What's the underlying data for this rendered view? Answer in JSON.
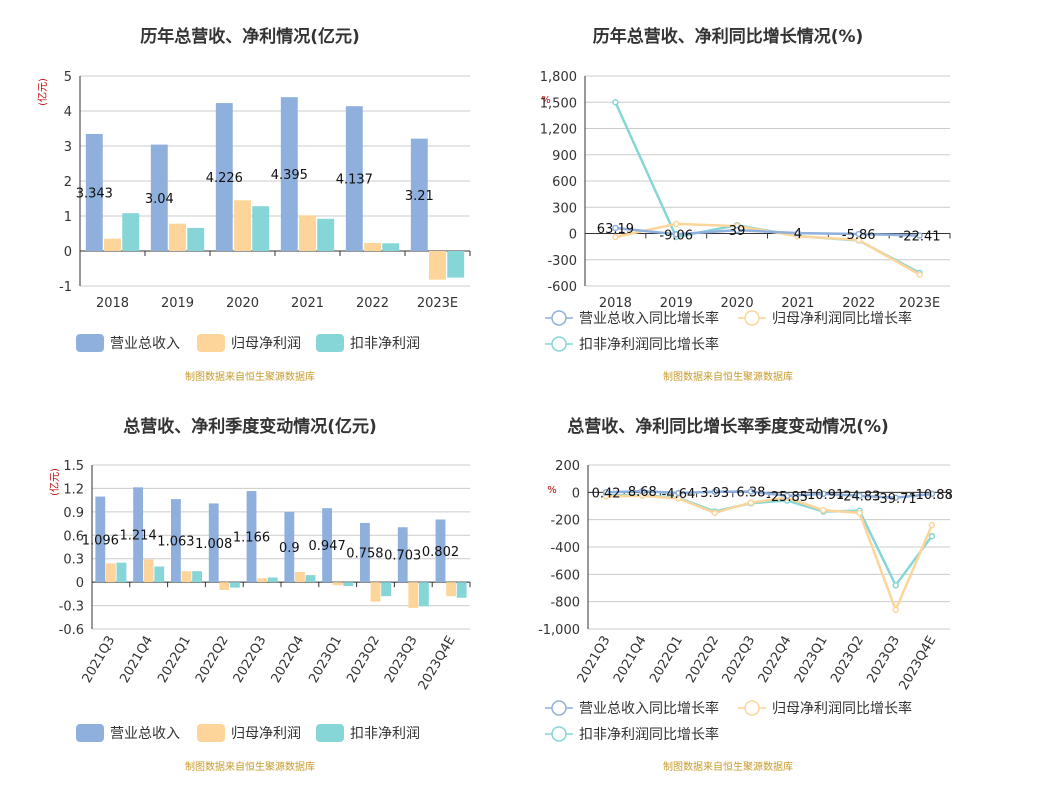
{
  "colors": {
    "revenue": "#8fb0dd",
    "net_profit": "#fdd59a",
    "deducted_profit": "#86d6d8",
    "line_revenue": "#8fb0dd",
    "line_net": "#fdd59a",
    "line_deducted": "#86d6d8",
    "source": "#c89a2c"
  },
  "source_note": "制图数据来自恒生聚源数据库",
  "legend_bar": [
    "营业总收入",
    "归母净利润",
    "扣非净利润"
  ],
  "legend_line": [
    "营业总收入同比增长率",
    "归母净利润同比增长率",
    "扣非净利润同比增长率"
  ],
  "chart_data": [
    {
      "type": "bar",
      "title": "历年总营收、净利情况(亿元)",
      "ylabel": "(亿元)",
      "categories": [
        "2018",
        "2019",
        "2020",
        "2021",
        "2022",
        "2023E"
      ],
      "ylim": [
        -1,
        5
      ],
      "yticks": [
        5,
        4,
        3,
        2,
        1,
        0,
        -1
      ],
      "series": [
        {
          "name": "营业总收入",
          "values": [
            3.343,
            3.04,
            4.226,
            4.395,
            4.137,
            3.21
          ]
        },
        {
          "name": "归母净利润",
          "values": [
            0.35,
            0.78,
            1.45,
            1.02,
            0.23,
            -0.82
          ]
        },
        {
          "name": "扣非净利润",
          "values": [
            1.08,
            0.66,
            1.28,
            0.92,
            0.22,
            -0.76
          ]
        }
      ],
      "data_labels": [
        "3.343",
        "3.04",
        "4.226",
        "4.395",
        "4.137",
        "3.21"
      ],
      "grid": true,
      "legend": "bottom"
    },
    {
      "type": "line",
      "title": "历年总营收、净利同比增长情况(%)",
      "ylabel": "%",
      "categories": [
        "2018",
        "2019",
        "2020",
        "2021",
        "2022",
        "2023E"
      ],
      "ylim": [
        -600,
        1800
      ],
      "yticks": [
        1800,
        1500,
        1200,
        900,
        600,
        300,
        0,
        -300,
        -600
      ],
      "ytick_labels": [
        "1,800",
        "1,500",
        "1,200",
        "900",
        "600",
        "300",
        "0",
        "-300",
        "-600"
      ],
      "series": [
        {
          "name": "营业总收入同比增长率",
          "values": [
            63.19,
            -9.06,
            39,
            4,
            -5.86,
            -22.41
          ]
        },
        {
          "name": "归母净利润同比增长率",
          "values": [
            -40,
            110,
            85,
            -30,
            -75,
            -470
          ]
        },
        {
          "name": "扣非净利润同比增长率",
          "values": [
            1500,
            -40,
            95,
            -30,
            -80,
            -450
          ]
        }
      ],
      "data_labels": [
        "63.19",
        "-9.06",
        "39",
        "4",
        "-5.86",
        "-22.41"
      ],
      "grid": true,
      "legend": "bottom"
    },
    {
      "type": "bar",
      "title": "总营收、净利季度变动情况(亿元)",
      "ylabel": "(亿元)",
      "categories": [
        "2021Q3",
        "2021Q4",
        "2022Q1",
        "2022Q2",
        "2022Q3",
        "2022Q4",
        "2023Q1",
        "2023Q2",
        "2023Q3",
        "2023Q4E"
      ],
      "ylim": [
        -0.6,
        1.5
      ],
      "yticks": [
        1.5,
        1.2,
        0.9,
        0.6,
        0.3,
        0,
        -0.3,
        -0.6
      ],
      "series": [
        {
          "name": "营业总收入",
          "values": [
            1.096,
            1.214,
            1.063,
            1.008,
            1.166,
            0.9,
            0.947,
            0.758,
            0.703,
            0.802
          ]
        },
        {
          "name": "归母净利润",
          "values": [
            0.24,
            0.29,
            0.14,
            -0.1,
            0.05,
            0.13,
            -0.04,
            -0.25,
            -0.33,
            -0.18
          ]
        },
        {
          "name": "扣非净利润",
          "values": [
            0.25,
            0.2,
            0.14,
            -0.07,
            0.06,
            0.09,
            -0.05,
            -0.18,
            -0.31,
            -0.2
          ]
        }
      ],
      "data_labels": [
        "1.096",
        "1.214",
        "1.063",
        "1.008",
        "1.166",
        "0.9",
        "0.947",
        "0.758",
        "0.703",
        "0.802"
      ],
      "grid": true,
      "legend": "bottom"
    },
    {
      "type": "line",
      "title": "总营收、净利同比增长率季度变动情况(%)",
      "ylabel": "%",
      "categories": [
        "2021Q3",
        "2021Q4",
        "2022Q1",
        "2022Q2",
        "2022Q3",
        "2022Q4",
        "2023Q1",
        "2023Q2",
        "2023Q3",
        "2023Q4E"
      ],
      "ylim": [
        -1000,
        200
      ],
      "yticks": [
        200,
        0,
        -200,
        -400,
        -600,
        -800,
        -1000
      ],
      "ytick_labels": [
        "200",
        "0",
        "-200",
        "-400",
        "-600",
        "-800",
        "-1,000"
      ],
      "series": [
        {
          "name": "营业总收入同比增长率",
          "values": [
            0.42,
            8.68,
            -4.64,
            3.93,
            6.38,
            -25.85,
            -10.91,
            -24.83,
            -39.71,
            -10.88
          ]
        },
        {
          "name": "归母净利润同比增长率",
          "values": [
            -30,
            -25,
            -45,
            -150,
            -75,
            -40,
            -130,
            -150,
            -860,
            -240
          ]
        },
        {
          "name": "扣非净利润同比增长率",
          "values": [
            -20,
            -20,
            -40,
            -140,
            -80,
            -60,
            -140,
            -135,
            -680,
            -320
          ]
        }
      ],
      "data_labels": [
        "0.42",
        "8.68",
        "-4.64",
        "3.93",
        "6.38",
        "-25.85",
        "-10.91",
        "-24.83",
        "-39.71",
        "-10.88"
      ],
      "grid": true,
      "legend": "bottom"
    }
  ]
}
